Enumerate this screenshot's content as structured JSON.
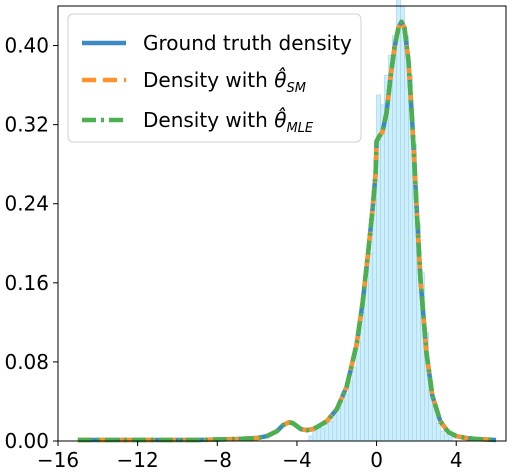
{
  "chart_data": {
    "type": "line",
    "title": "",
    "xlabel": "",
    "ylabel": "",
    "xlim": [
      -16,
      6.5
    ],
    "ylim": [
      0.0,
      0.44
    ],
    "x_ticks": [
      -16,
      -12,
      -8,
      -4,
      0,
      4
    ],
    "x_tick_labels": [
      "−16",
      "−12",
      "−8",
      "−4",
      "0",
      "4"
    ],
    "y_ticks": [
      0.0,
      0.08,
      0.16,
      0.24,
      0.32,
      0.4
    ],
    "y_tick_labels": [
      "0.00",
      "0.08",
      "0.16",
      "0.24",
      "0.32",
      "0.40"
    ],
    "grid": false,
    "legend_position": "top-left",
    "colors": {
      "ground_truth": "#3b8ac4",
      "sm": "#ff922b",
      "mle": "#4caf50",
      "hist_fill": "#cdeefa",
      "hist_edge": "#9fd8ee"
    },
    "series": [
      {
        "name": "Ground truth density",
        "style": "solid",
        "x": [
          -15,
          -12,
          -9,
          -7,
          -6,
          -5.5,
          -5,
          -4.7,
          -4.4,
          -4.2,
          -4.0,
          -3.8,
          -3.5,
          -3.2,
          -3.0,
          -2.5,
          -2.0,
          -1.5,
          -1.0,
          -0.7,
          -0.4,
          -0.2,
          -0.05,
          0.0,
          0.1,
          0.3,
          0.5,
          0.7,
          0.9,
          1.1,
          1.25,
          1.4,
          1.6,
          1.8,
          2.0,
          2.2,
          2.5,
          2.8,
          3.2,
          3.6,
          4.0,
          4.5,
          5.0,
          6.0
        ],
        "y": [
          0.001,
          0.001,
          0.001,
          0.002,
          0.003,
          0.005,
          0.01,
          0.016,
          0.019,
          0.018,
          0.015,
          0.012,
          0.011,
          0.012,
          0.014,
          0.02,
          0.032,
          0.055,
          0.098,
          0.14,
          0.195,
          0.235,
          0.27,
          0.303,
          0.307,
          0.313,
          0.332,
          0.368,
          0.398,
          0.418,
          0.424,
          0.418,
          0.385,
          0.32,
          0.24,
          0.165,
          0.09,
          0.046,
          0.02,
          0.009,
          0.005,
          0.003,
          0.002,
          0.001
        ]
      },
      {
        "name": "Density with θSM",
        "style": "dashed",
        "x": [
          -15,
          -12,
          -9,
          -7,
          -6,
          -5.5,
          -5,
          -4.7,
          -4.4,
          -4.2,
          -4.0,
          -3.8,
          -3.5,
          -3.2,
          -3.0,
          -2.5,
          -2.0,
          -1.5,
          -1.0,
          -0.7,
          -0.4,
          -0.2,
          -0.05,
          0.0,
          0.1,
          0.3,
          0.5,
          0.7,
          0.9,
          1.1,
          1.25,
          1.4,
          1.6,
          1.8,
          2.0,
          2.2,
          2.5,
          2.8,
          3.2,
          3.6,
          4.0,
          4.5,
          5.0,
          6.0
        ],
        "y": [
          0.001,
          0.001,
          0.001,
          0.002,
          0.003,
          0.005,
          0.01,
          0.016,
          0.019,
          0.018,
          0.015,
          0.012,
          0.011,
          0.012,
          0.014,
          0.02,
          0.032,
          0.055,
          0.098,
          0.14,
          0.195,
          0.235,
          0.27,
          0.303,
          0.307,
          0.313,
          0.332,
          0.368,
          0.398,
          0.418,
          0.424,
          0.418,
          0.385,
          0.32,
          0.24,
          0.165,
          0.09,
          0.046,
          0.02,
          0.009,
          0.005,
          0.003,
          0.002,
          0.001
        ]
      },
      {
        "name": "Density with θMLE",
        "style": "dashdot",
        "x": [
          -15,
          -12,
          -9,
          -7,
          -6,
          -5.5,
          -5,
          -4.7,
          -4.4,
          -4.2,
          -4.0,
          -3.8,
          -3.5,
          -3.2,
          -3.0,
          -2.5,
          -2.0,
          -1.5,
          -1.0,
          -0.7,
          -0.4,
          -0.2,
          -0.05,
          0.0,
          0.1,
          0.3,
          0.5,
          0.7,
          0.9,
          1.1,
          1.25,
          1.4,
          1.6,
          1.8,
          2.0,
          2.2,
          2.5,
          2.8,
          3.2,
          3.6,
          4.0,
          4.5,
          5.0,
          6.0
        ],
        "y": [
          0.001,
          0.001,
          0.001,
          0.002,
          0.003,
          0.005,
          0.01,
          0.016,
          0.019,
          0.018,
          0.015,
          0.012,
          0.011,
          0.012,
          0.014,
          0.02,
          0.032,
          0.055,
          0.098,
          0.14,
          0.195,
          0.235,
          0.27,
          0.303,
          0.307,
          0.313,
          0.332,
          0.368,
          0.398,
          0.418,
          0.424,
          0.418,
          0.385,
          0.32,
          0.24,
          0.165,
          0.09,
          0.046,
          0.02,
          0.009,
          0.005,
          0.003,
          0.002,
          0.001
        ]
      }
    ],
    "histogram": {
      "bin_width": 0.2,
      "bin_starts": [
        -3.4,
        -3.2,
        -3.0,
        -2.8,
        -2.6,
        -2.4,
        -2.2,
        -2.0,
        -1.8,
        -1.6,
        -1.4,
        -1.2,
        -1.0,
        -0.8,
        -0.6,
        -0.4,
        -0.2,
        0.0,
        0.2,
        0.4,
        0.6,
        0.8,
        1.0,
        1.2,
        1.4,
        1.6,
        1.8,
        2.0,
        2.2,
        2.4,
        2.6,
        2.8,
        3.0,
        3.2,
        3.4,
        3.6
      ],
      "heights": [
        0.005,
        0.01,
        0.014,
        0.013,
        0.017,
        0.02,
        0.026,
        0.033,
        0.04,
        0.047,
        0.06,
        0.075,
        0.1,
        0.13,
        0.16,
        0.19,
        0.25,
        0.35,
        0.34,
        0.37,
        0.39,
        0.41,
        0.45,
        0.44,
        0.41,
        0.37,
        0.3,
        0.22,
        0.17,
        0.11,
        0.06,
        0.035,
        0.018,
        0.01,
        0.006,
        0.004
      ]
    },
    "legend": [
      {
        "label": "Ground truth density",
        "base": "",
        "sub": ""
      },
      {
        "label": "Density with ",
        "base": "θ̂",
        "sub": "SM"
      },
      {
        "label": "Density with ",
        "base": "θ̂",
        "sub": "MLE"
      }
    ]
  }
}
